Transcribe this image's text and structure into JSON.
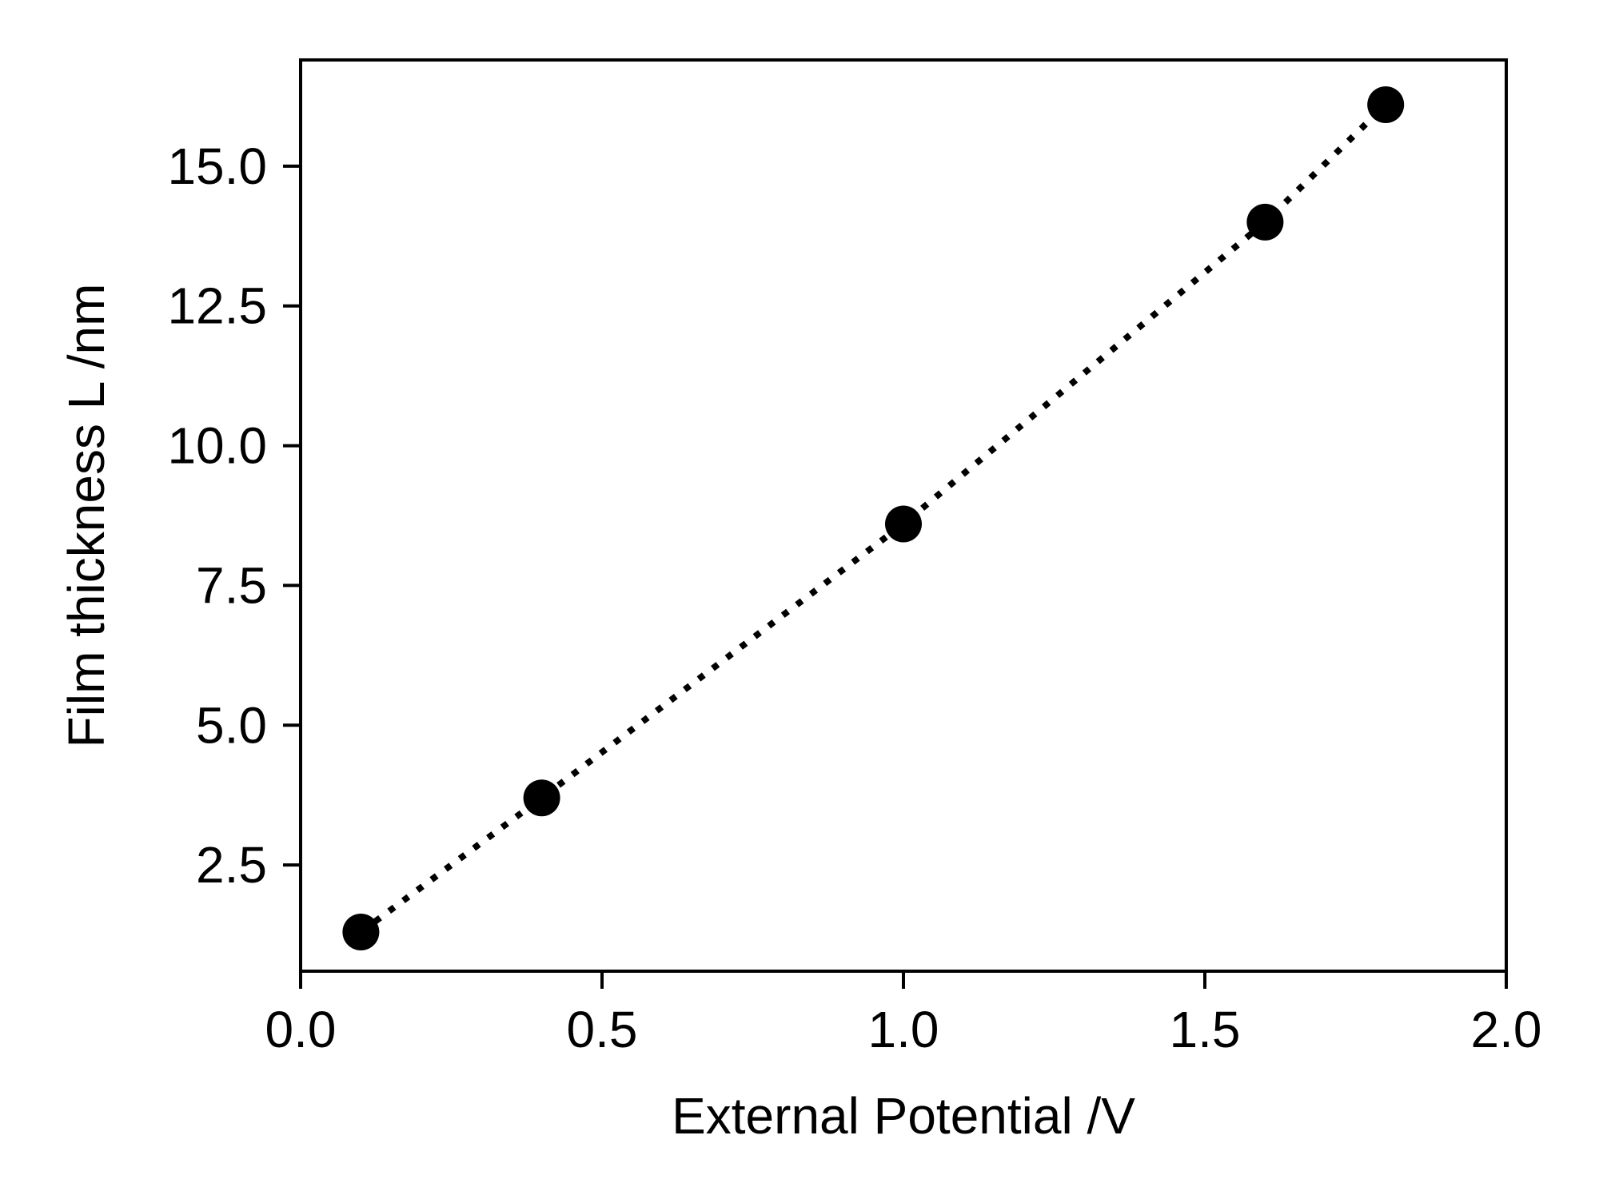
{
  "chart_data": {
    "type": "line",
    "title": "",
    "xlabel": "External Potential /V",
    "ylabel": "Film thickness L /nm",
    "xlim": [
      0.0,
      2.0
    ],
    "ylim": [
      0.6,
      16.9
    ],
    "x_ticks": [
      0.0,
      0.5,
      1.0,
      1.5,
      2.0
    ],
    "x_tick_labels": [
      "0.0",
      "0.5",
      "1.0",
      "1.5",
      "2.0"
    ],
    "y_ticks": [
      2.5,
      5.0,
      7.5,
      10.0,
      12.5,
      15.0
    ],
    "y_tick_labels": [
      "2.5",
      "5.0",
      "7.5",
      "10.0",
      "12.5",
      "15.0"
    ],
    "grid": false,
    "series": [
      {
        "x": [
          0.1,
          0.4,
          1.0,
          1.6,
          1.8
        ],
        "y": [
          1.3,
          3.7,
          8.6,
          14.0,
          16.1
        ],
        "line_style": "dotted",
        "marker": "circle",
        "color": "#000000"
      }
    ]
  }
}
